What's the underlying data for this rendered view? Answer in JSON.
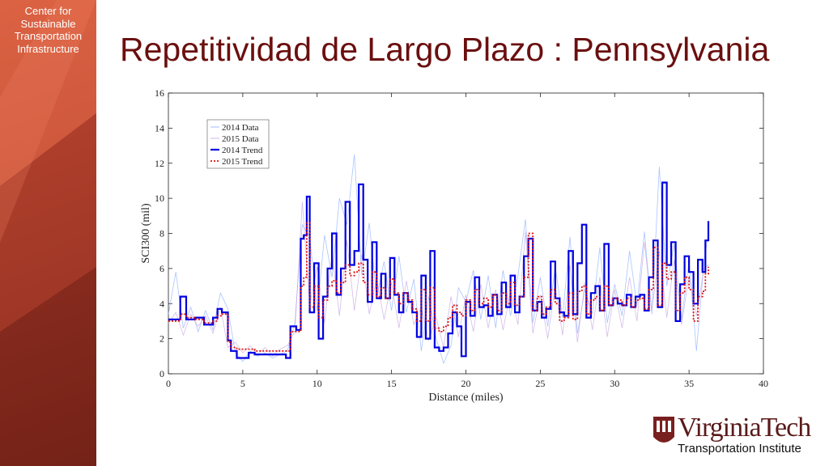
{
  "sidebar": {
    "center_name": [
      "Center for",
      "Sustainable",
      "Transportation",
      "Infrastructure"
    ]
  },
  "slide": {
    "title": "Repetitividad de Largo Plazo : Pennsylvania"
  },
  "logo": {
    "wordmark": "VirginiaTech",
    "subtitle": "Transportation Institute"
  },
  "colors": {
    "title": "#6b0f0f",
    "sidebar": "#b8432f",
    "trend_2014": "#0000e0",
    "trend_2015": "#e01010",
    "data_2014": "#8fb0ff",
    "data_2015": "#c6a6e0"
  },
  "chart_data": {
    "type": "line",
    "xlabel": "Distance (miles)",
    "ylabel": "SCI300 (mil)",
    "xlim": [
      0,
      40
    ],
    "ylim": [
      0,
      16
    ],
    "xticks": [
      0,
      5,
      10,
      15,
      20,
      25,
      30,
      35,
      40
    ],
    "yticks": [
      0,
      2,
      4,
      6,
      8,
      10,
      12,
      14,
      16
    ],
    "grid": false,
    "legend_position": "upper-left",
    "series": [
      {
        "name": "2014 Data",
        "style": "thin noisy line",
        "color": "#8fb0ff",
        "x": [
          0,
          0.5,
          1,
          1.5,
          2,
          2.5,
          3,
          3.5,
          4,
          4.5,
          5,
          5.5,
          6,
          6.5,
          7,
          7.5,
          8,
          8.5,
          9,
          9.5,
          10,
          10.5,
          11,
          11.5,
          12,
          12.5,
          13,
          13.5,
          14,
          14.5,
          15,
          15.5,
          16,
          16.5,
          17,
          17.5,
          18,
          18.5,
          19,
          19.5,
          20,
          20.5,
          21,
          21.5,
          22,
          22.5,
          23,
          23.5,
          24,
          24.5,
          25,
          25.5,
          26,
          26.5,
          27,
          27.5,
          28,
          28.5,
          29,
          29.5,
          30,
          30.5,
          31,
          31.5,
          32,
          32.5,
          33,
          33.5,
          34,
          34.5,
          35,
          35.5,
          36,
          36.3
        ],
        "y": [
          3.4,
          5.8,
          2.6,
          3.8,
          2.4,
          3.6,
          2.5,
          4.6,
          3.7,
          1.2,
          0.7,
          1.3,
          1.0,
          1.2,
          0.9,
          1.1,
          1.3,
          2.9,
          8.5,
          7.8,
          3.6,
          7.9,
          5.5,
          10.0,
          8.5,
          12.5,
          5.6,
          8.6,
          4.3,
          6.4,
          3.6,
          6.7,
          3.5,
          5.4,
          1.3,
          4.4,
          2.0,
          0.6,
          1.6,
          4.9,
          4.1,
          5.9,
          3.1,
          5.6,
          2.6,
          5.9,
          3.3,
          5.6,
          8.8,
          2.9,
          5.5,
          2.7,
          6.1,
          3.2,
          7.8,
          2.3,
          4.8,
          3.4,
          7.2,
          2.9,
          5.1,
          3.3,
          7.0,
          3.9,
          8.1,
          3.4,
          11.8,
          5.0,
          7.4,
          3.1,
          6.4,
          1.3,
          6.3,
          8.0
        ]
      },
      {
        "name": "2015 Data",
        "style": "thin noisy line",
        "color": "#c6a6e0",
        "x": [
          0,
          0.5,
          1,
          1.5,
          2,
          2.5,
          3,
          3.5,
          4,
          4.5,
          5,
          5.5,
          6,
          6.5,
          7,
          7.5,
          8,
          8.5,
          9,
          9.5,
          10,
          10.5,
          11,
          11.5,
          12,
          12.5,
          13,
          13.5,
          14,
          14.5,
          15,
          15.5,
          16,
          16.5,
          17,
          17.5,
          18,
          18.5,
          19,
          19.5,
          20,
          20.5,
          21,
          21.5,
          22,
          22.5,
          23,
          23.5,
          24,
          24.5,
          25,
          25.5,
          26,
          26.5,
          27,
          27.5,
          28,
          28.5,
          29,
          29.5,
          30,
          30.5,
          31,
          31.5,
          32,
          32.5,
          33,
          33.5,
          34,
          34.5,
          35,
          35.5,
          36,
          36.3
        ],
        "y": [
          2.9,
          3.5,
          2.2,
          3.4,
          2.7,
          3.3,
          2.3,
          3.8,
          1.5,
          1.8,
          1.2,
          1.6,
          1.1,
          1.5,
          1.0,
          1.4,
          1.6,
          2.4,
          9.8,
          3.9,
          6.1,
          2.9,
          6.9,
          3.3,
          7.6,
          3.6,
          6.8,
          3.4,
          5.4,
          3.1,
          5.2,
          2.6,
          5.3,
          2.8,
          3.8,
          1.9,
          3.2,
          1.5,
          4.4,
          2.1,
          4.5,
          2.4,
          5.1,
          2.6,
          4.8,
          2.5,
          4.7,
          2.8,
          8.1,
          2.3,
          4.5,
          2.0,
          5.0,
          2.2,
          6.2,
          1.8,
          5.2,
          2.5,
          5.5,
          2.1,
          4.8,
          2.6,
          5.5,
          3.0,
          7.5,
          3.6,
          7.0,
          3.2,
          6.5,
          2.8,
          5.6,
          3.3,
          6.0,
          6.2
        ]
      },
      {
        "name": "2014 Trend",
        "style": "thick solid line",
        "color": "#0000e0",
        "x": [
          0,
          0.5,
          0.8,
          1.2,
          1.8,
          2.4,
          3,
          3.3,
          3.6,
          4,
          4.2,
          4.6,
          5.4,
          5.8,
          6.4,
          7.2,
          7.9,
          8.2,
          8.6,
          8.9,
          9.1,
          9.3,
          9.5,
          9.8,
          10.1,
          10.4,
          10.7,
          11.0,
          11.3,
          11.6,
          11.9,
          12.2,
          12.5,
          12.8,
          13.1,
          13.4,
          13.7,
          14.0,
          14.3,
          14.6,
          14.9,
          15.2,
          15.5,
          15.8,
          16.1,
          16.4,
          16.7,
          17.0,
          17.3,
          17.6,
          17.9,
          18.2,
          18.5,
          18.8,
          19.1,
          19.4,
          19.7,
          20.0,
          20.3,
          20.6,
          20.9,
          21.2,
          21.5,
          21.8,
          22.1,
          22.4,
          22.7,
          23.0,
          23.3,
          23.6,
          23.9,
          24.2,
          24.5,
          24.8,
          25.1,
          25.4,
          25.7,
          26.0,
          26.3,
          26.6,
          26.9,
          27.2,
          27.5,
          27.8,
          28.1,
          28.4,
          28.7,
          29.0,
          29.3,
          29.6,
          29.9,
          30.2,
          30.5,
          30.8,
          31.1,
          31.4,
          31.7,
          32.0,
          32.3,
          32.6,
          32.9,
          33.2,
          33.5,
          33.8,
          34.1,
          34.4,
          34.7,
          35.0,
          35.3,
          35.6,
          35.9,
          36.1,
          36.3
        ],
        "y": [
          3.1,
          3.1,
          4.4,
          3.1,
          3.2,
          2.8,
          3.2,
          3.7,
          3.5,
          1.9,
          1.3,
          0.9,
          1.2,
          1.1,
          1.1,
          1.1,
          0.9,
          2.7,
          2.5,
          7.7,
          7.9,
          10.1,
          3.5,
          6.3,
          2.0,
          4.4,
          6.0,
          8.0,
          4.5,
          6.0,
          9.8,
          6.2,
          7.0,
          10.8,
          6.5,
          4.1,
          7.5,
          4.3,
          5.7,
          4.3,
          6.6,
          4.5,
          3.5,
          4.6,
          4.1,
          3.5,
          2.1,
          5.6,
          2.0,
          7.0,
          1.5,
          1.3,
          1.5,
          2.3,
          3.5,
          2.7,
          1.0,
          4.1,
          3.3,
          5.5,
          3.8,
          3.9,
          3.3,
          4.5,
          3.4,
          5.2,
          3.8,
          5.6,
          3.5,
          4.4,
          6.7,
          7.7,
          3.6,
          4.1,
          3.2,
          3.7,
          6.4,
          4.3,
          3.5,
          3.3,
          7.0,
          3.4,
          6.3,
          8.5,
          3.2,
          4.6,
          5.0,
          3.6,
          7.4,
          3.9,
          4.3,
          4.0,
          3.9,
          4.5,
          3.8,
          4.4,
          4.5,
          3.6,
          5.5,
          7.6,
          3.8,
          10.9,
          6.2,
          7.5,
          3.0,
          5.1,
          6.7,
          5.8,
          4.0,
          6.5,
          5.8,
          7.6,
          8.7
        ]
      },
      {
        "name": "2015 Trend",
        "style": "dotted line",
        "color": "#e01010",
        "x": [
          0,
          0.5,
          0.8,
          1.2,
          1.8,
          2.4,
          3,
          3.3,
          3.6,
          4,
          4.2,
          4.6,
          5.4,
          5.8,
          6.4,
          7.2,
          7.9,
          8.2,
          8.6,
          8.9,
          9.1,
          9.3,
          9.5,
          9.8,
          10.1,
          10.4,
          10.7,
          11.0,
          11.3,
          11.6,
          11.9,
          12.2,
          12.5,
          12.8,
          13.1,
          13.4,
          13.7,
          14.0,
          14.3,
          14.6,
          14.9,
          15.2,
          15.5,
          15.8,
          16.1,
          16.4,
          16.7,
          17.0,
          17.3,
          17.6,
          17.9,
          18.2,
          18.5,
          18.8,
          19.1,
          19.4,
          19.7,
          20.0,
          20.3,
          20.6,
          20.9,
          21.2,
          21.5,
          21.8,
          22.1,
          22.4,
          22.7,
          23.0,
          23.3,
          23.6,
          23.9,
          24.2,
          24.5,
          24.8,
          25.1,
          25.4,
          25.7,
          26.0,
          26.3,
          26.6,
          26.9,
          27.2,
          27.5,
          27.8,
          28.1,
          28.4,
          28.7,
          29.0,
          29.3,
          29.6,
          29.9,
          30.2,
          30.5,
          30.8,
          31.1,
          31.4,
          31.7,
          32.0,
          32.3,
          32.6,
          32.9,
          33.2,
          33.5,
          33.8,
          34.1,
          34.4,
          34.7,
          35.0,
          35.3,
          35.6,
          35.9,
          36.1,
          36.3
        ],
        "y": [
          3.0,
          3.0,
          3.4,
          3.2,
          3.1,
          2.9,
          3.0,
          3.3,
          3.4,
          1.8,
          1.5,
          1.4,
          1.4,
          1.3,
          1.3,
          1.3,
          1.3,
          2.4,
          2.4,
          5.0,
          5.5,
          8.6,
          3.8,
          5.0,
          3.2,
          4.2,
          5.0,
          5.3,
          4.6,
          5.2,
          6.2,
          5.6,
          5.8,
          6.3,
          5.2,
          4.5,
          5.8,
          4.4,
          4.9,
          4.3,
          5.4,
          4.6,
          4.0,
          4.6,
          4.2,
          3.7,
          3.0,
          4.8,
          3.0,
          4.9,
          2.6,
          2.4,
          2.7,
          3.2,
          3.9,
          3.5,
          3.3,
          4.2,
          3.6,
          4.8,
          4.0,
          4.3,
          3.8,
          4.5,
          3.6,
          4.6,
          4.0,
          5.2,
          3.9,
          4.4,
          5.5,
          8.0,
          3.6,
          4.4,
          3.4,
          3.8,
          4.8,
          4.0,
          3.0,
          3.2,
          4.6,
          3.1,
          4.7,
          5.0,
          3.4,
          4.2,
          4.4,
          3.6,
          5.0,
          3.9,
          4.3,
          4.2,
          3.9,
          4.3,
          3.8,
          4.2,
          4.3,
          3.7,
          4.8,
          7.2,
          3.9,
          6.3,
          5.4,
          5.8,
          3.6,
          4.6,
          5.5,
          4.8,
          3.0,
          4.4,
          4.7,
          5.7,
          6.1
        ]
      }
    ]
  }
}
